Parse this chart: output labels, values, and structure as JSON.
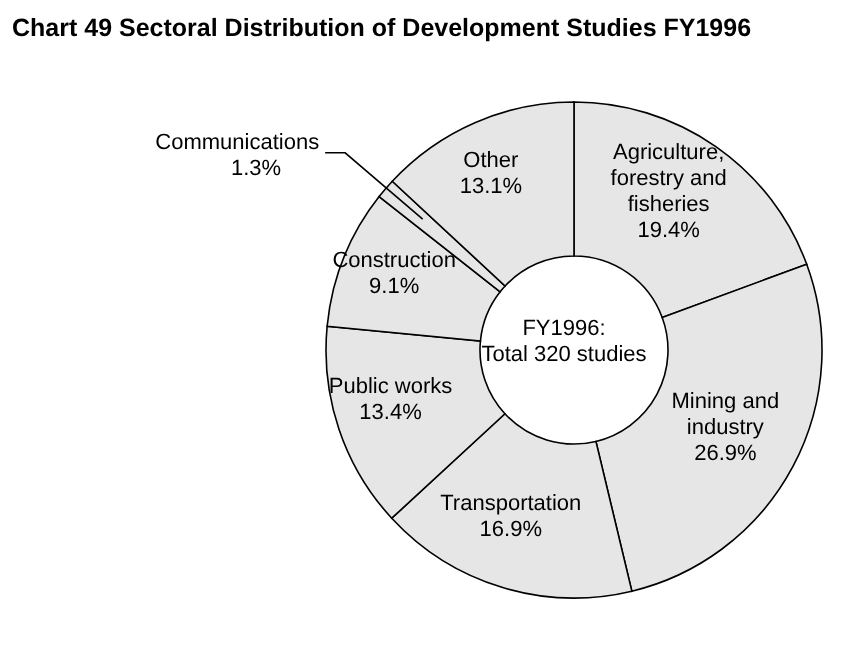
{
  "chart_data": {
    "type": "donut",
    "title": "Chart 49  Sectoral Distribution of Development Studies FY1996",
    "categories": [
      "Agriculture, forestry and fisheries",
      "Mining and industry",
      "Transportation",
      "Public works",
      "Construction",
      "Communications",
      "Other"
    ],
    "values": [
      19.4,
      26.9,
      16.9,
      13.4,
      9.1,
      1.3,
      13.1
    ],
    "value_labels": [
      "19.4%",
      "26.9%",
      "16.9%",
      "13.4%",
      "9.1%",
      "1.3%",
      "13.1%"
    ],
    "colors": [
      "#e6e6e6",
      "#e6e6e6",
      "#e6e6e6",
      "#e6e6e6",
      "#e6e6e6",
      "#e6e6e6",
      "#e6e6e6"
    ],
    "annotations": [
      "FY1996:",
      "Total 320 studies"
    ],
    "legend": false
  }
}
